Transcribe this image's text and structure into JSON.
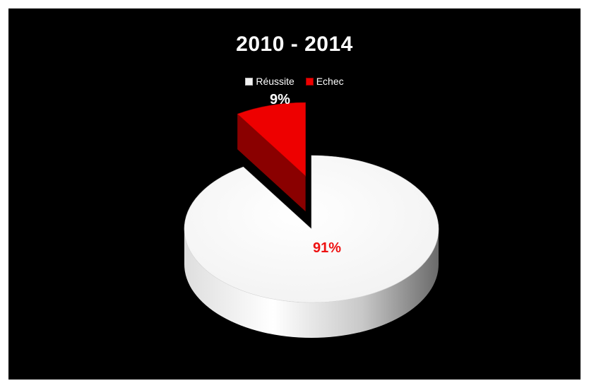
{
  "chart_data": {
    "type": "pie",
    "title": "2010 - 2014",
    "legend": "top",
    "slices": [
      {
        "label": "Réussite",
        "value": 91,
        "data_label": "91%",
        "color": "#ffffff"
      },
      {
        "label": "Echec",
        "value": 9,
        "data_label": "9%",
        "color": "#ee0000",
        "exploded": true
      }
    ]
  },
  "colors": {
    "background": "#000000",
    "reussite_label": "#ee1111",
    "echec_label": "#ffffff"
  }
}
